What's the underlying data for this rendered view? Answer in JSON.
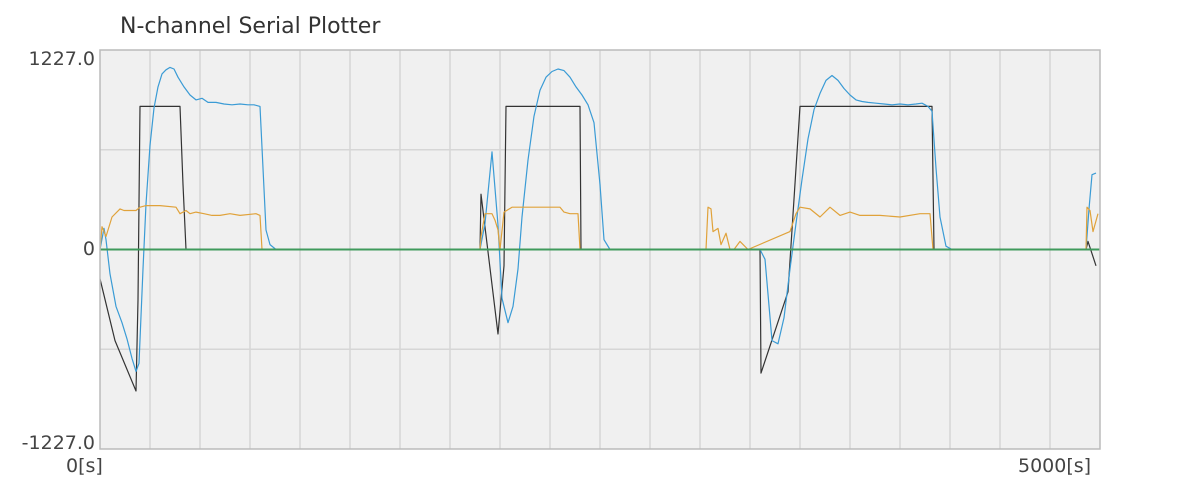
{
  "title": "N-channel Serial Plotter",
  "axes": {
    "y_max_label": "1227.0",
    "y_zero_label": "0",
    "y_min_label": "-1227.0",
    "x_min_label": "0[s]",
    "x_max_label": "5000[s]"
  },
  "colors": {
    "background": "#f0f0f0",
    "grid": "#d6d6d6",
    "frame": "#bbbbbb",
    "series_black": "#333333",
    "series_blue": "#3a9bd5",
    "series_orange": "#e0a23a",
    "series_green": "#3f9a5c"
  },
  "chart_data": {
    "type": "line",
    "title": "N-channel Serial Plotter",
    "xlabel": "",
    "ylabel": "",
    "xlim": [
      0,
      5000
    ],
    "ylim": [
      -1227,
      1227
    ],
    "x_ticks": [
      "0[s]",
      "5000[s]"
    ],
    "y_ticks": [
      "-1227.0",
      "0",
      "1227.0"
    ],
    "grid": true,
    "series": [
      {
        "color": "#333333",
        "points": [
          [
            0,
            -180
          ],
          [
            75,
            -560
          ],
          [
            180,
            -870
          ],
          [
            190,
            -310
          ],
          [
            200,
            880
          ],
          [
            395,
            880
          ],
          [
            400,
            880
          ],
          [
            415,
            400
          ],
          [
            430,
            0
          ],
          [
            1900,
            0
          ],
          [
            1905,
            340
          ],
          [
            1990,
            -520
          ],
          [
            2020,
            -100
          ],
          [
            2030,
            880
          ],
          [
            2400,
            880
          ],
          [
            2405,
            0
          ],
          [
            3300,
            0
          ],
          [
            3305,
            -760
          ],
          [
            3440,
            -260
          ],
          [
            3500,
            880
          ],
          [
            4160,
            880
          ],
          [
            4170,
            0
          ],
          [
            4930,
            0
          ],
          [
            4940,
            50
          ],
          [
            4980,
            -100
          ]
        ]
      },
      {
        "color": "#3a9bd5",
        "points": [
          [
            0,
            0
          ],
          [
            20,
            130
          ],
          [
            30,
            60
          ],
          [
            50,
            -150
          ],
          [
            80,
            -350
          ],
          [
            110,
            -450
          ],
          [
            135,
            -550
          ],
          [
            160,
            -670
          ],
          [
            180,
            -750
          ],
          [
            195,
            -700
          ],
          [
            215,
            -120
          ],
          [
            230,
            280
          ],
          [
            250,
            640
          ],
          [
            270,
            870
          ],
          [
            290,
            1000
          ],
          [
            310,
            1080
          ],
          [
            330,
            1105
          ],
          [
            350,
            1120
          ],
          [
            370,
            1110
          ],
          [
            390,
            1060
          ],
          [
            420,
            1000
          ],
          [
            450,
            950
          ],
          [
            480,
            920
          ],
          [
            510,
            930
          ],
          [
            540,
            905
          ],
          [
            580,
            905
          ],
          [
            620,
            895
          ],
          [
            660,
            890
          ],
          [
            700,
            895
          ],
          [
            740,
            890
          ],
          [
            770,
            890
          ],
          [
            800,
            880
          ],
          [
            830,
            120
          ],
          [
            850,
            30
          ],
          [
            880,
            0
          ],
          [
            1900,
            0
          ],
          [
            1925,
            160
          ],
          [
            1960,
            600
          ],
          [
            1990,
            150
          ],
          [
            2010,
            -300
          ],
          [
            2040,
            -450
          ],
          [
            2065,
            -350
          ],
          [
            2090,
            -120
          ],
          [
            2110,
            200
          ],
          [
            2140,
            550
          ],
          [
            2170,
            820
          ],
          [
            2200,
            980
          ],
          [
            2230,
            1060
          ],
          [
            2260,
            1095
          ],
          [
            2290,
            1110
          ],
          [
            2320,
            1100
          ],
          [
            2350,
            1060
          ],
          [
            2380,
            1000
          ],
          [
            2410,
            950
          ],
          [
            2440,
            890
          ],
          [
            2470,
            780
          ],
          [
            2500,
            400
          ],
          [
            2520,
            60
          ],
          [
            2550,
            0
          ],
          [
            3300,
            0
          ],
          [
            3325,
            -60
          ],
          [
            3360,
            -560
          ],
          [
            3390,
            -580
          ],
          [
            3420,
            -420
          ],
          [
            3450,
            -120
          ],
          [
            3480,
            160
          ],
          [
            3510,
            430
          ],
          [
            3540,
            680
          ],
          [
            3570,
            860
          ],
          [
            3600,
            960
          ],
          [
            3630,
            1040
          ],
          [
            3660,
            1070
          ],
          [
            3690,
            1040
          ],
          [
            3720,
            990
          ],
          [
            3750,
            950
          ],
          [
            3780,
            920
          ],
          [
            3810,
            910
          ],
          [
            3840,
            905
          ],
          [
            3880,
            900
          ],
          [
            3920,
            895
          ],
          [
            3960,
            890
          ],
          [
            4000,
            895
          ],
          [
            4040,
            890
          ],
          [
            4080,
            895
          ],
          [
            4110,
            900
          ],
          [
            4140,
            880
          ],
          [
            4160,
            850
          ],
          [
            4180,
            500
          ],
          [
            4200,
            200
          ],
          [
            4230,
            20
          ],
          [
            4260,
            0
          ],
          [
            4930,
            0
          ],
          [
            4945,
            250
          ],
          [
            4960,
            460
          ],
          [
            4980,
            470
          ]
        ]
      },
      {
        "color": "#e0a23a",
        "points": [
          [
            0,
            0
          ],
          [
            10,
            140
          ],
          [
            30,
            80
          ],
          [
            60,
            200
          ],
          [
            100,
            250
          ],
          [
            120,
            240
          ],
          [
            180,
            240
          ],
          [
            200,
            260
          ],
          [
            230,
            270
          ],
          [
            300,
            270
          ],
          [
            380,
            260
          ],
          [
            400,
            220
          ],
          [
            430,
            240
          ],
          [
            450,
            220
          ],
          [
            480,
            230
          ],
          [
            520,
            220
          ],
          [
            560,
            210
          ],
          [
            600,
            210
          ],
          [
            650,
            220
          ],
          [
            700,
            210
          ],
          [
            780,
            220
          ],
          [
            800,
            210
          ],
          [
            810,
            0
          ],
          [
            1900,
            0
          ],
          [
            1905,
            80
          ],
          [
            1925,
            220
          ],
          [
            1960,
            220
          ],
          [
            1975,
            180
          ],
          [
            1990,
            120
          ],
          [
            2000,
            0
          ],
          [
            2020,
            230
          ],
          [
            2060,
            260
          ],
          [
            2300,
            260
          ],
          [
            2320,
            230
          ],
          [
            2350,
            220
          ],
          [
            2390,
            220
          ],
          [
            2400,
            0
          ],
          [
            3030,
            0
          ],
          [
            3040,
            260
          ],
          [
            3055,
            250
          ],
          [
            3065,
            110
          ],
          [
            3090,
            130
          ],
          [
            3105,
            30
          ],
          [
            3130,
            100
          ],
          [
            3150,
            0
          ],
          [
            3170,
            0
          ],
          [
            3200,
            50
          ],
          [
            3240,
            0
          ],
          [
            3450,
            110
          ],
          [
            3480,
            220
          ],
          [
            3500,
            260
          ],
          [
            3550,
            250
          ],
          [
            3600,
            200
          ],
          [
            3650,
            260
          ],
          [
            3700,
            210
          ],
          [
            3750,
            230
          ],
          [
            3800,
            210
          ],
          [
            3900,
            210
          ],
          [
            4000,
            200
          ],
          [
            4100,
            220
          ],
          [
            4150,
            220
          ],
          [
            4165,
            0
          ],
          [
            4930,
            0
          ],
          [
            4935,
            260
          ],
          [
            4950,
            240
          ],
          [
            4965,
            110
          ],
          [
            4990,
            220
          ]
        ]
      },
      {
        "color": "#3f9a5c",
        "points": [
          [
            0,
            0
          ],
          [
            5000,
            0
          ]
        ]
      }
    ]
  }
}
